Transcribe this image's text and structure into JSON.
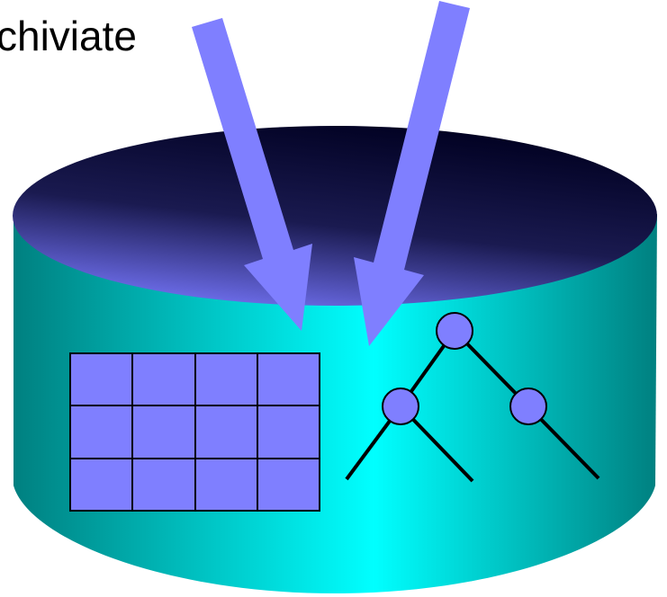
{
  "label": "chiviate"
}
